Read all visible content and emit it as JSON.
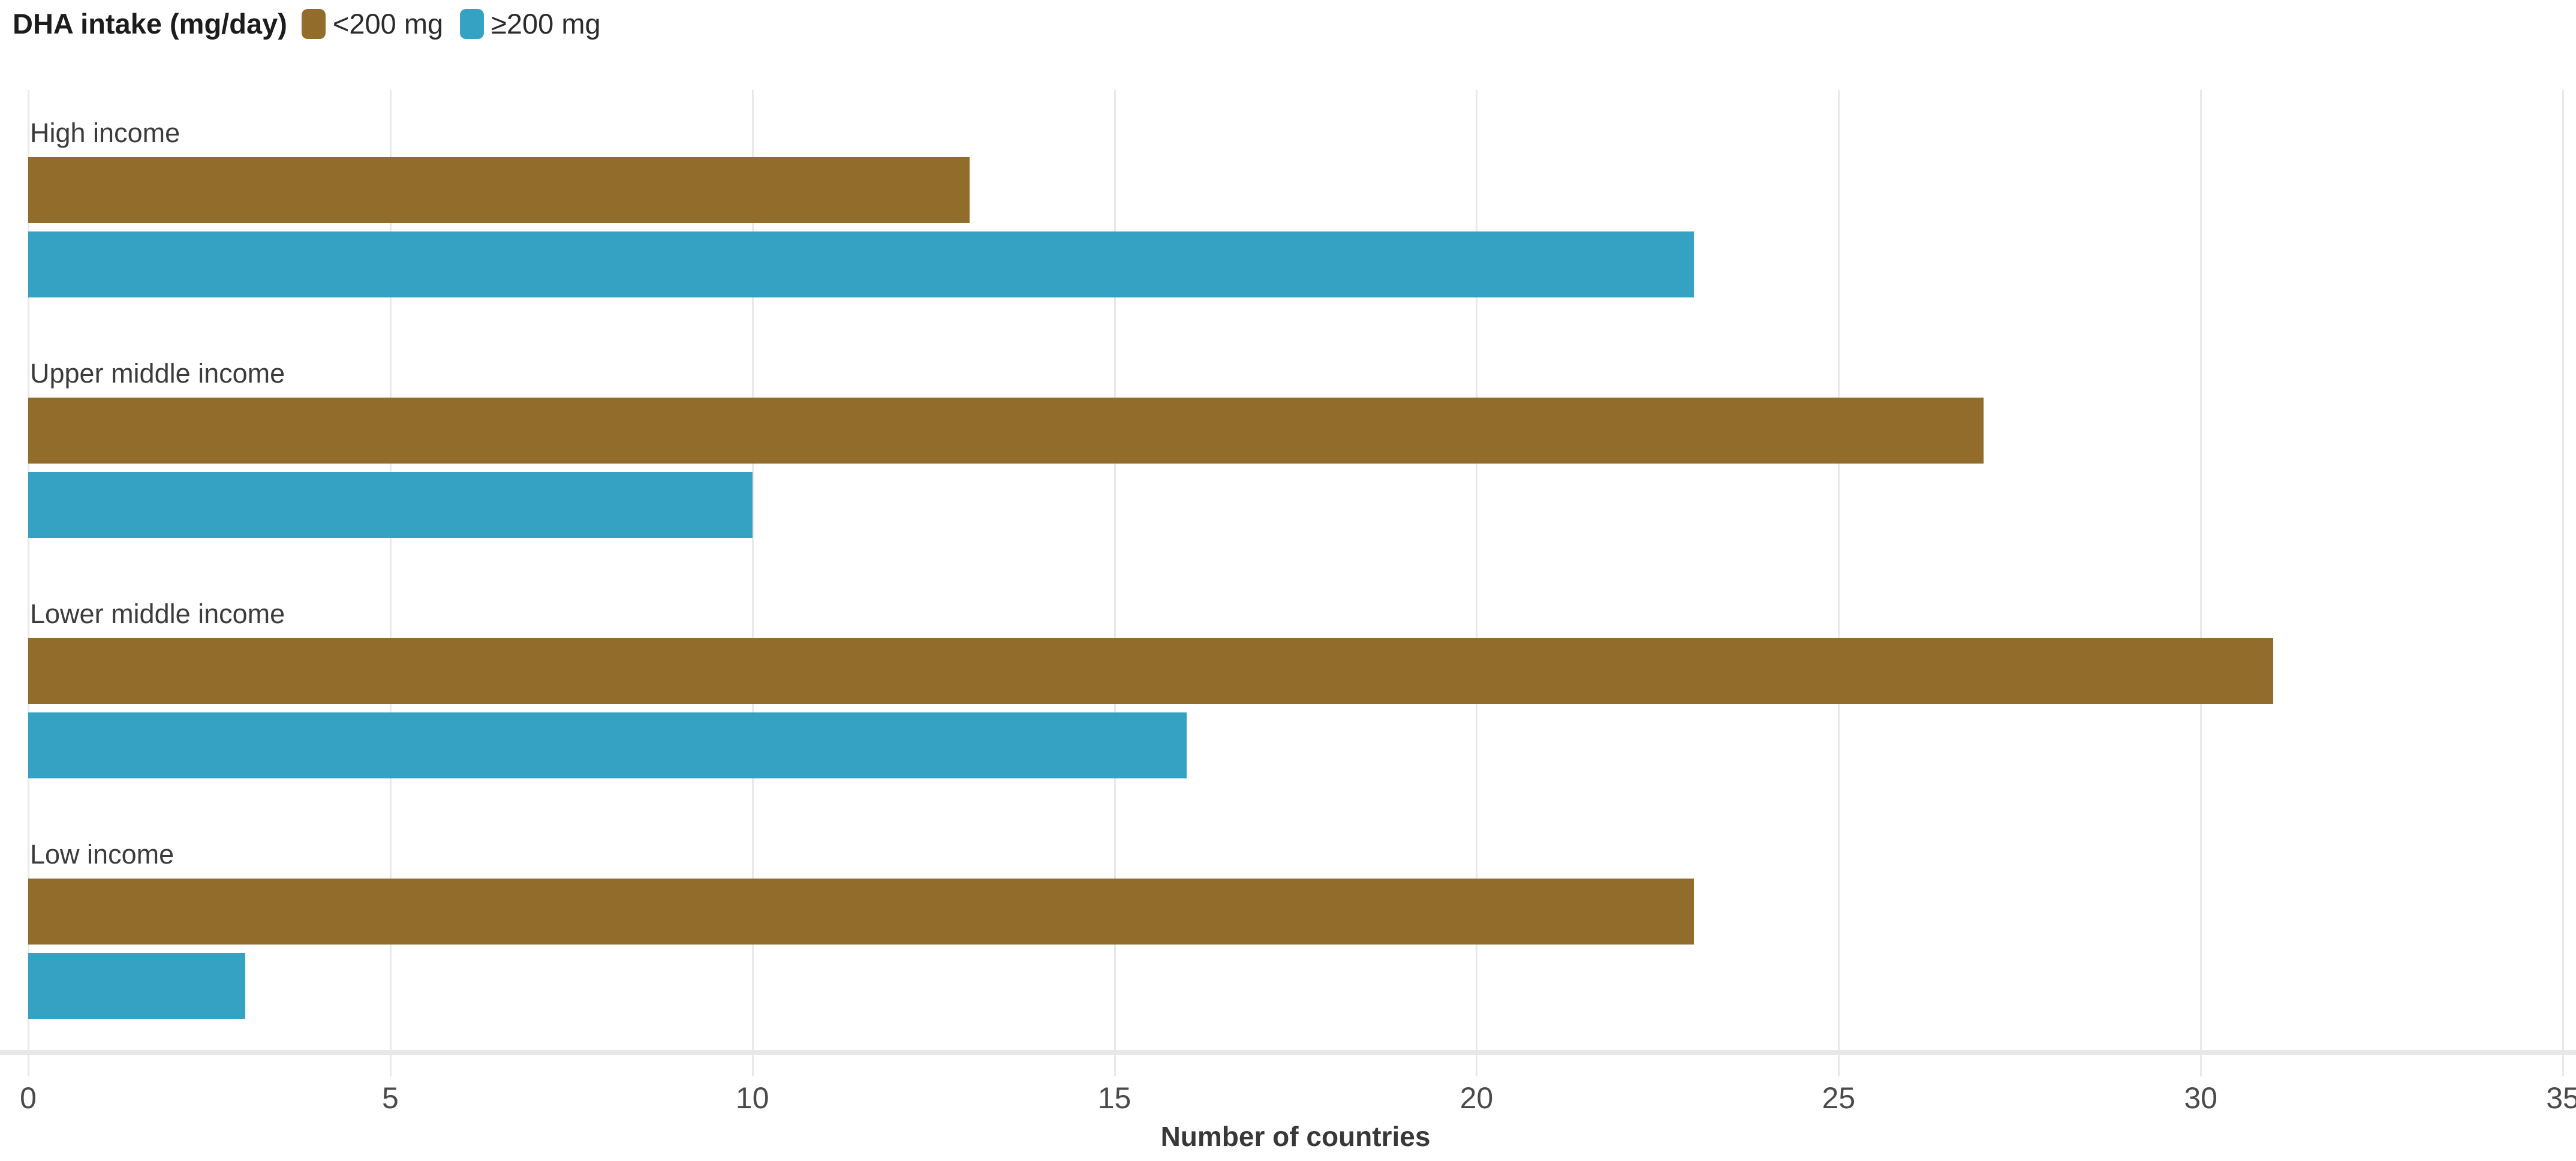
{
  "legend": {
    "title": "DHA intake (mg/day)",
    "items": [
      {
        "label": "<200 mg",
        "color": "#916C2B"
      },
      {
        "label": "≥200 mg",
        "color": "#35A2C4"
      }
    ]
  },
  "x_axis": {
    "title": "Number of countries",
    "ticks": [
      0,
      5,
      10,
      15,
      20,
      25,
      30,
      35
    ],
    "max": 35
  },
  "chart_data": {
    "type": "bar",
    "orientation": "horizontal",
    "title": "",
    "xlabel": "Number of countries",
    "ylabel": "",
    "xlim": [
      0,
      35
    ],
    "x_ticks": [
      0,
      5,
      10,
      15,
      20,
      25,
      30,
      35
    ],
    "grid": true,
    "legend_position": "top-left",
    "legend_title": "DHA intake (mg/day)",
    "categories": [
      "High income",
      "Upper middle income",
      "Lower middle income",
      "Low income"
    ],
    "series": [
      {
        "name": "<200 mg",
        "color": "#916C2B",
        "values": [
          13,
          27,
          31,
          23
        ]
      },
      {
        "name": "≥200 mg",
        "color": "#35A2C4",
        "values": [
          23,
          10,
          16,
          3
        ]
      }
    ]
  }
}
